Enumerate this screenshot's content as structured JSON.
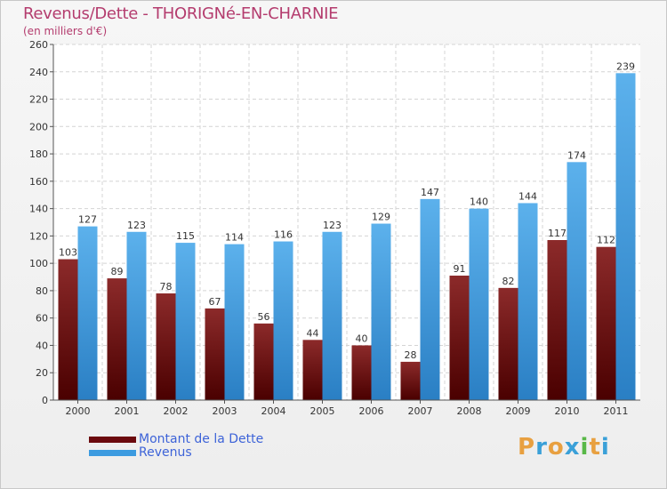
{
  "title": "Revenus/Dette - THORIGNé-EN-CHARNIE",
  "subtitle": "(en milliers d'€)",
  "chart_data": {
    "type": "bar",
    "title": "Revenus/Dette - THORIGNé-EN-CHARNIE",
    "ylabel": "(en milliers d'€)",
    "xlabel": "",
    "categories": [
      "2000",
      "2001",
      "2002",
      "2003",
      "2004",
      "2005",
      "2006",
      "2007",
      "2008",
      "2009",
      "2010",
      "2011"
    ],
    "series": [
      {
        "name": "Montant de la Dette",
        "color": "#7a0f14",
        "values": [
          103,
          89,
          78,
          67,
          56,
          44,
          40,
          28,
          91,
          82,
          117,
          112
        ]
      },
      {
        "name": "Revenus",
        "color": "#3c9be0",
        "values": [
          127,
          123,
          115,
          114,
          116,
          123,
          129,
          147,
          140,
          144,
          174,
          239
        ]
      }
    ],
    "ylim": [
      0,
      260
    ],
    "yticks": [
      0,
      20,
      40,
      60,
      80,
      100,
      120,
      140,
      160,
      180,
      200,
      220,
      240,
      260
    ],
    "grid": true,
    "legend": "bottom-left"
  },
  "legend": {
    "items": [
      {
        "label": "Montant de la Dette",
        "color": "#6b0a0e"
      },
      {
        "label": "Revenus",
        "color": "#3c9be0"
      }
    ]
  },
  "logo": {
    "letters": [
      "P",
      "r",
      "o",
      "x",
      "i",
      "t",
      "i"
    ],
    "colors": [
      "#e8a040",
      "#3aa0d8",
      "#e8a040",
      "#3aa0d8",
      "#58b848",
      "#e8a040",
      "#3aa0d8"
    ]
  }
}
